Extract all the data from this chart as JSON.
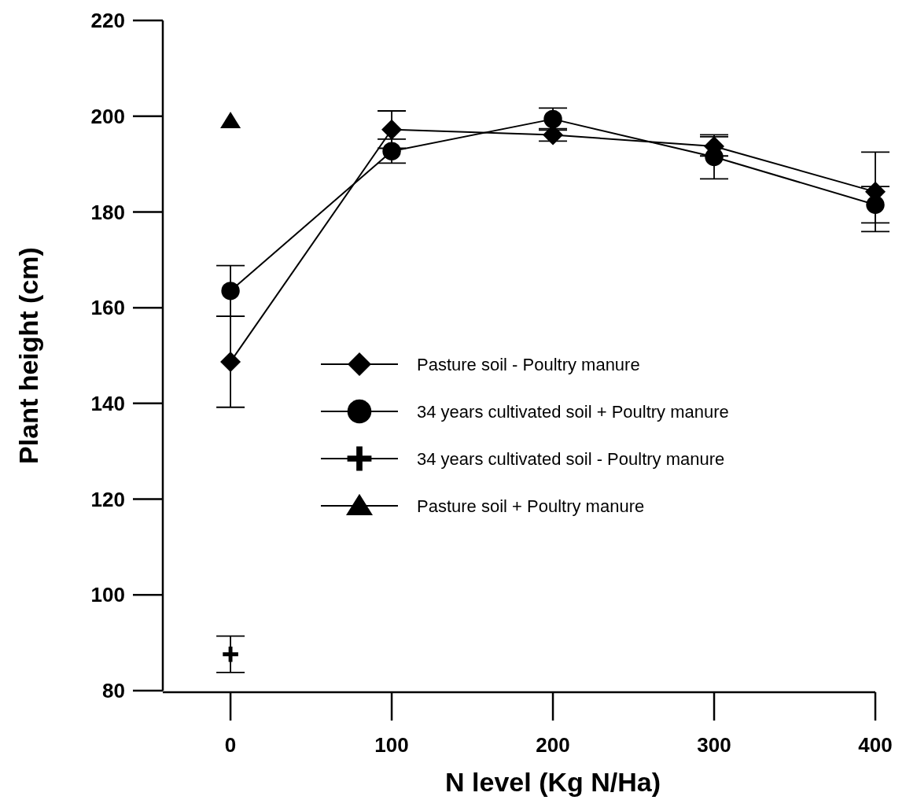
{
  "chart_data": {
    "type": "line",
    "xlabel": "N level (Kg N/Ha)",
    "ylabel": "Plant height (cm)",
    "xlim": [
      -42,
      400
    ],
    "ylim": [
      80,
      220
    ],
    "xticks": [
      0,
      100,
      200,
      300,
      400
    ],
    "yticks": [
      80,
      100,
      120,
      140,
      160,
      180,
      200,
      220
    ],
    "grid": false,
    "legend": "center",
    "series": [
      {
        "name": "Pasture soil - Poultry manure",
        "color": "#000000",
        "marker": "diamond",
        "x": [
          0,
          100,
          200,
          300,
          400
        ],
        "values": [
          148.7,
          197.2,
          196.1,
          193.7,
          184.2
        ],
        "errors": [
          9.5,
          3.9,
          1.3,
          2,
          8.3
        ]
      },
      {
        "name": "34 years cultivated soil + Poultry manure",
        "color": "#000000",
        "marker": "circle",
        "x": [
          0,
          100,
          200,
          300,
          400
        ],
        "values": [
          163.5,
          192.7,
          199.4,
          191.5,
          181.5
        ],
        "errors": [
          5.3,
          2.5,
          2.3,
          4.6,
          3.8
        ]
      },
      {
        "name": "34 years cultivated soil - Poultry manure",
        "type": "scatter",
        "color": "#000000",
        "marker": "cross",
        "x": [
          0
        ],
        "values": [
          87.6
        ],
        "errors": [
          3.8
        ]
      },
      {
        "name": "Pasture soil + Poultry manure",
        "type": "scatter",
        "color": "#000000",
        "marker": "triangle",
        "x": [
          0
        ],
        "values": [
          199
        ]
      }
    ]
  }
}
